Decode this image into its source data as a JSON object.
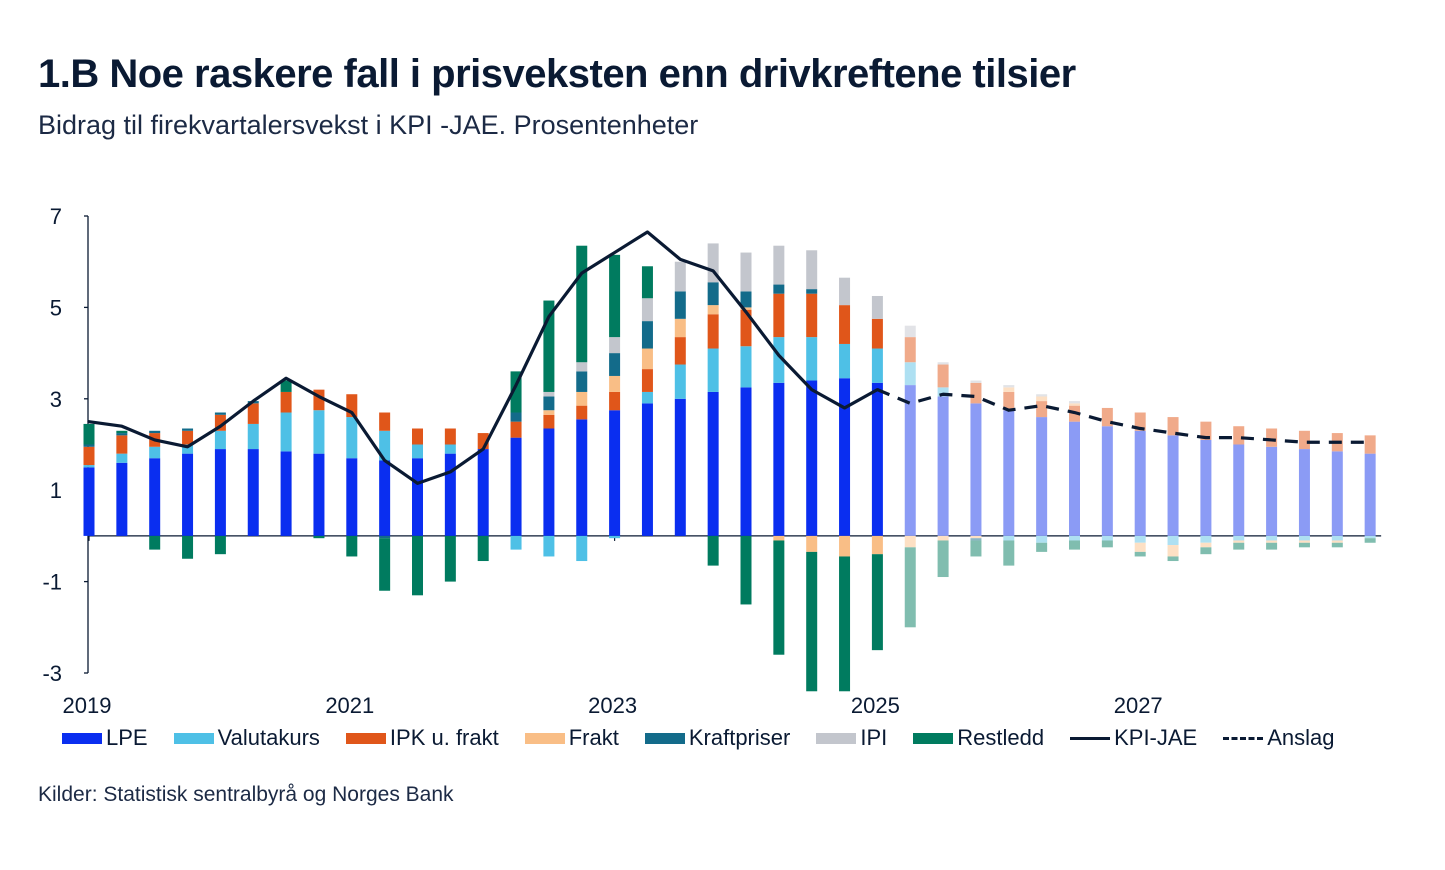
{
  "title": "1.B Noe raskere fall i prisveksten enn drivkreftene tilsier",
  "subtitle": "Bidrag til firekvartalersvekst i KPI -JAE. Prosentenheter",
  "source": "Kilder: Statistisk sentralbyrå og Norges Bank",
  "chart_data": {
    "type": "bar",
    "stacked": true,
    "ylim": [
      -3,
      7
    ],
    "yticks": [
      "7",
      "5",
      "3",
      "1",
      "-1",
      "-3"
    ],
    "xtick_labels": [
      {
        "label": "2019",
        "index": 0
      },
      {
        "label": "2021",
        "index": 8
      },
      {
        "label": "2023",
        "index": 16
      },
      {
        "label": "2025",
        "index": 24
      },
      {
        "label": "2027",
        "index": 32
      }
    ],
    "quarters": [
      "2019K1",
      "2019K2",
      "2019K3",
      "2019K4",
      "2020K1",
      "2020K2",
      "2020K3",
      "2020K4",
      "2021K1",
      "2021K2",
      "2021K3",
      "2021K4",
      "2022K1",
      "2022K2",
      "2022K3",
      "2022K4",
      "2023K1",
      "2023K2",
      "2023K3",
      "2023K4",
      "2024K1",
      "2024K2",
      "2024K3",
      "2024K4",
      "2025K1",
      "2025K2",
      "2025K3",
      "2025K4",
      "2026K1",
      "2026K2",
      "2026K3",
      "2026K4",
      "2027K1",
      "2027K2",
      "2027K3",
      "2027K4",
      "2028K1",
      "2028K2",
      "2028K3",
      "2028K4"
    ],
    "forecast_start_index": 25,
    "series": [
      {
        "name": "LPE",
        "color": "#0a2ef0",
        "forecast_color": "#8b9bf5",
        "values": [
          1.5,
          1.6,
          1.7,
          1.8,
          1.9,
          1.9,
          1.85,
          1.8,
          1.7,
          1.65,
          1.7,
          1.8,
          1.9,
          2.15,
          2.35,
          2.55,
          2.75,
          2.9,
          3.0,
          3.15,
          3.25,
          3.35,
          3.4,
          3.45,
          3.35,
          3.3,
          3.05,
          2.9,
          2.75,
          2.6,
          2.5,
          2.4,
          2.3,
          2.2,
          2.1,
          2.0,
          1.95,
          1.9,
          1.85,
          1.8
        ]
      },
      {
        "name": "Valutakurs",
        "color": "#4ec0e6",
        "forecast_color": "#aee0f2",
        "values": [
          0.05,
          0.2,
          0.25,
          0.2,
          0.4,
          0.55,
          0.85,
          0.95,
          0.9,
          0.65,
          0.3,
          0.2,
          0.0,
          -0.3,
          -0.45,
          -0.55,
          -0.05,
          0.25,
          0.75,
          0.95,
          0.9,
          1.0,
          0.95,
          0.75,
          0.75,
          0.5,
          0.2,
          0.0,
          -0.1,
          -0.15,
          -0.1,
          -0.1,
          -0.15,
          -0.2,
          -0.15,
          -0.1,
          -0.1,
          -0.1,
          -0.1,
          -0.05
        ]
      },
      {
        "name": "IPK u. frakt",
        "color": "#e0561a",
        "forecast_color": "#f0aa8a",
        "values": [
          0.4,
          0.4,
          0.3,
          0.3,
          0.35,
          0.45,
          0.45,
          0.45,
          0.5,
          0.4,
          0.35,
          0.35,
          0.35,
          0.35,
          0.3,
          0.3,
          0.4,
          0.5,
          0.6,
          0.75,
          0.8,
          0.95,
          0.95,
          0.85,
          0.65,
          0.55,
          0.5,
          0.45,
          0.4,
          0.35,
          0.35,
          0.4,
          0.4,
          0.4,
          0.4,
          0.4,
          0.4,
          0.4,
          0.4,
          0.4
        ]
      },
      {
        "name": "Frakt",
        "color": "#f9be86",
        "forecast_color": "#fde0c4",
        "values": [
          0.0,
          0.0,
          0.0,
          0.0,
          0.0,
          0.0,
          0.0,
          0.0,
          0.0,
          0.0,
          0.0,
          0.0,
          0.0,
          0.0,
          0.1,
          0.3,
          0.35,
          0.45,
          0.4,
          0.2,
          0.05,
          -0.1,
          -0.35,
          -0.45,
          -0.4,
          -0.25,
          -0.1,
          -0.05,
          0.1,
          0.1,
          0.05,
          0.0,
          -0.2,
          -0.25,
          -0.1,
          -0.05,
          -0.05,
          -0.05,
          -0.05,
          0.0
        ]
      },
      {
        "name": "Kraftpriser",
        "color": "#136b8a",
        "forecast_color": "#8ab5c4",
        "values": [
          0.05,
          0.05,
          0.05,
          0.05,
          0.05,
          0.05,
          0.0,
          0.0,
          0.0,
          -0.05,
          0.0,
          0.0,
          0.0,
          0.2,
          0.3,
          0.45,
          0.5,
          0.6,
          0.6,
          0.5,
          0.35,
          0.2,
          0.1,
          0.0,
          0.0,
          0.0,
          0.0,
          -0.05,
          0.0,
          0.0,
          0.0,
          0.0,
          0.0,
          0.0,
          0.0,
          0.0,
          0.0,
          0.0,
          0.0,
          0.0
        ]
      },
      {
        "name": "IPI",
        "color": "#c3c6cd",
        "forecast_color": "#e2e3e7",
        "values": [
          0.0,
          0.0,
          0.0,
          0.0,
          0.0,
          0.0,
          0.0,
          0.0,
          0.0,
          0.0,
          0.0,
          0.0,
          0.0,
          0.0,
          0.1,
          0.2,
          0.35,
          0.5,
          0.65,
          0.85,
          0.85,
          0.85,
          0.85,
          0.6,
          0.5,
          0.25,
          0.05,
          0.05,
          0.05,
          0.05,
          0.05,
          0.0,
          0.0,
          0.0,
          0.0,
          0.0,
          0.0,
          0.0,
          0.0,
          0.0
        ]
      },
      {
        "name": "Restledd",
        "color": "#007b5f",
        "forecast_color": "#80bdaf",
        "values": [
          0.45,
          0.05,
          -0.3,
          -0.5,
          -0.4,
          0.0,
          0.25,
          -0.05,
          -0.45,
          -1.15,
          -1.3,
          -1.0,
          -0.55,
          0.9,
          2.0,
          2.55,
          1.8,
          0.7,
          0.0,
          -0.65,
          -1.5,
          -2.5,
          -3.05,
          -2.95,
          -2.1,
          -1.75,
          -0.8,
          -0.35,
          -0.55,
          -0.2,
          -0.2,
          -0.15,
          -0.1,
          -0.1,
          -0.15,
          -0.15,
          -0.15,
          -0.1,
          -0.1,
          -0.1
        ]
      }
    ],
    "line_series": [
      {
        "name": "KPI-JAE",
        "color": "#0a1a33",
        "dashed": false,
        "start_index": 0,
        "values": [
          2.5,
          2.4,
          2.1,
          1.95,
          2.4,
          2.95,
          3.45,
          3.05,
          2.7,
          1.65,
          1.15,
          1.4,
          1.9,
          3.3,
          4.8,
          5.75,
          6.2,
          6.65,
          6.05,
          5.8,
          4.9,
          3.95,
          3.2,
          2.8,
          3.2
        ]
      },
      {
        "name": "Anslag",
        "color": "#0a1a33",
        "dashed": true,
        "start_index": 24,
        "values": [
          3.2,
          2.9,
          3.1,
          3.05,
          2.75,
          2.85,
          2.7,
          2.5,
          2.35,
          2.25,
          2.15,
          2.15,
          2.1,
          2.05,
          2.05,
          2.05
        ]
      }
    ],
    "legend": [
      "LPE",
      "Valutakurs",
      "IPK u. frakt",
      "Frakt",
      "Kraftpriser",
      "IPI",
      "Restledd",
      "KPI-JAE",
      "Anslag"
    ]
  }
}
